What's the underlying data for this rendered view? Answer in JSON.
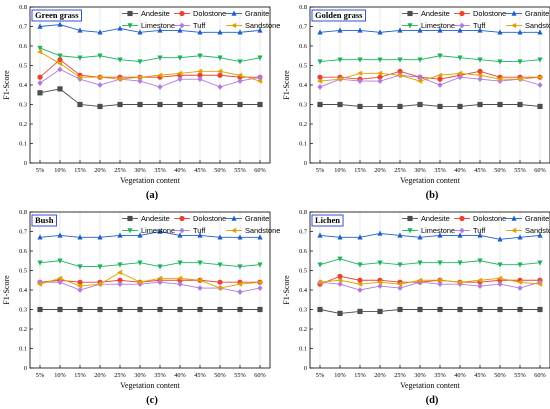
{
  "figure": {
    "series_styles": [
      {
        "name": "Andesite",
        "color": "#4d4d4d",
        "marker": "square"
      },
      {
        "name": "Dolostone",
        "color": "#e8432e",
        "marker": "circle"
      },
      {
        "name": "Granite",
        "color": "#1f5fcc",
        "marker": "triangle-up"
      },
      {
        "name": "Limestone",
        "color": "#22b25a",
        "marker": "triangle-down"
      },
      {
        "name": "Tuff",
        "color": "#b27ae0",
        "marker": "diamond"
      },
      {
        "name": "Sandstone",
        "color": "#e0a000",
        "marker": "triangle-left"
      }
    ]
  },
  "chart_data": [
    {
      "type": "line",
      "panel_title": "Green grass",
      "caption": "(a)",
      "xlabel": "Vegetation content",
      "ylabel": "F1-Score",
      "ylim": [
        0,
        0.8
      ],
      "yticks": [
        "0",
        "0.1",
        "0.2",
        "0.3",
        "0.4",
        "0.5",
        "0.6",
        "0.7",
        "0.8"
      ],
      "categories": [
        "5%",
        "10%",
        "15%",
        "20%",
        "25%",
        "30%",
        "35%",
        "40%",
        "45%",
        "50%",
        "55%",
        "60%"
      ],
      "grid": "vertical",
      "legend_position": "top-right",
      "series": [
        {
          "name": "Andesite",
          "values": [
            0.36,
            0.38,
            0.3,
            0.29,
            0.3,
            0.3,
            0.3,
            0.3,
            0.3,
            0.3,
            0.3,
            0.3
          ]
        },
        {
          "name": "Dolostone",
          "values": [
            0.44,
            0.53,
            0.45,
            0.44,
            0.44,
            0.44,
            0.44,
            0.45,
            0.45,
            0.45,
            0.44,
            0.44
          ]
        },
        {
          "name": "Granite",
          "values": [
            0.7,
            0.71,
            0.68,
            0.67,
            0.69,
            0.67,
            0.68,
            0.68,
            0.67,
            0.67,
            0.67,
            0.68
          ]
        },
        {
          "name": "Limestone",
          "values": [
            0.59,
            0.55,
            0.54,
            0.55,
            0.53,
            0.52,
            0.54,
            0.54,
            0.55,
            0.54,
            0.52,
            0.54
          ]
        },
        {
          "name": "Tuff",
          "values": [
            0.41,
            0.48,
            0.43,
            0.4,
            0.43,
            0.42,
            0.39,
            0.43,
            0.43,
            0.39,
            0.42,
            0.44
          ]
        },
        {
          "name": "Sandstone",
          "values": [
            0.57,
            0.51,
            0.44,
            0.44,
            0.43,
            0.44,
            0.45,
            0.46,
            0.47,
            0.47,
            0.45,
            0.42
          ]
        }
      ]
    },
    {
      "type": "line",
      "panel_title": "Golden grass",
      "caption": "(b)",
      "xlabel": "Vegetation content",
      "ylabel": "F1-Score",
      "ylim": [
        0,
        0.8
      ],
      "yticks": [
        "0",
        "0.1",
        "0.2",
        "0.3",
        "0.4",
        "0.5",
        "0.6",
        "0.7",
        "0.8"
      ],
      "categories": [
        "5%",
        "10%",
        "15%",
        "20%",
        "25%",
        "30%",
        "35%",
        "40%",
        "45%",
        "50%",
        "55%",
        "60%"
      ],
      "grid": "vertical",
      "legend_position": "top-right",
      "series": [
        {
          "name": "Andesite",
          "values": [
            0.3,
            0.3,
            0.29,
            0.29,
            0.29,
            0.3,
            0.29,
            0.29,
            0.3,
            0.3,
            0.3,
            0.29
          ]
        },
        {
          "name": "Dolostone",
          "values": [
            0.44,
            0.44,
            0.43,
            0.44,
            0.47,
            0.44,
            0.43,
            0.45,
            0.47,
            0.44,
            0.44,
            0.44
          ]
        },
        {
          "name": "Granite",
          "values": [
            0.67,
            0.68,
            0.68,
            0.67,
            0.68,
            0.68,
            0.68,
            0.68,
            0.68,
            0.67,
            0.67,
            0.67
          ]
        },
        {
          "name": "Limestone",
          "values": [
            0.52,
            0.53,
            0.53,
            0.53,
            0.53,
            0.53,
            0.55,
            0.54,
            0.53,
            0.52,
            0.52,
            0.53
          ]
        },
        {
          "name": "Tuff",
          "values": [
            0.39,
            0.43,
            0.42,
            0.42,
            0.45,
            0.44,
            0.4,
            0.44,
            0.43,
            0.42,
            0.43,
            0.4
          ]
        },
        {
          "name": "Sandstone",
          "values": [
            0.42,
            0.43,
            0.46,
            0.46,
            0.45,
            0.42,
            0.45,
            0.46,
            0.45,
            0.43,
            0.43,
            0.44
          ]
        }
      ]
    },
    {
      "type": "line",
      "panel_title": "Bush",
      "caption": "(c)",
      "xlabel": "Vegetation content",
      "ylabel": "F1-Score",
      "ylim": [
        0,
        0.8
      ],
      "yticks": [
        "0",
        "0.1",
        "0.2",
        "0.3",
        "0.4",
        "0.5",
        "0.6",
        "0.7",
        "0.8"
      ],
      "categories": [
        "5%",
        "10%",
        "15%",
        "20%",
        "25%",
        "30%",
        "35%",
        "40%",
        "45%",
        "50%",
        "55%",
        "60%"
      ],
      "grid": "vertical",
      "legend_position": "top-right",
      "series": [
        {
          "name": "Andesite",
          "values": [
            0.3,
            0.3,
            0.3,
            0.3,
            0.3,
            0.3,
            0.3,
            0.3,
            0.3,
            0.3,
            0.3,
            0.3
          ]
        },
        {
          "name": "Dolostone",
          "values": [
            0.44,
            0.45,
            0.44,
            0.44,
            0.45,
            0.44,
            0.45,
            0.45,
            0.45,
            0.44,
            0.44,
            0.44
          ]
        },
        {
          "name": "Granite",
          "values": [
            0.67,
            0.68,
            0.67,
            0.67,
            0.68,
            0.68,
            0.7,
            0.68,
            0.68,
            0.67,
            0.67,
            0.67
          ]
        },
        {
          "name": "Limestone",
          "values": [
            0.54,
            0.55,
            0.52,
            0.52,
            0.53,
            0.54,
            0.52,
            0.54,
            0.54,
            0.53,
            0.52,
            0.53
          ]
        },
        {
          "name": "Tuff",
          "values": [
            0.44,
            0.44,
            0.4,
            0.43,
            0.43,
            0.43,
            0.44,
            0.43,
            0.41,
            0.41,
            0.39,
            0.41
          ]
        },
        {
          "name": "Sandstone",
          "values": [
            0.43,
            0.46,
            0.42,
            0.43,
            0.49,
            0.44,
            0.46,
            0.46,
            0.45,
            0.41,
            0.43,
            0.44
          ]
        }
      ]
    },
    {
      "type": "line",
      "panel_title": "Lichen",
      "caption": "(d)",
      "xlabel": "Vegetation content",
      "ylabel": "F1-Score",
      "ylim": [
        0,
        0.8
      ],
      "yticks": [
        "0",
        "0.1",
        "0.2",
        "0.3",
        "0.4",
        "0.5",
        "0.6",
        "0.7",
        "0.8"
      ],
      "categories": [
        "5%",
        "10%",
        "15%",
        "20%",
        "25%",
        "30%",
        "35%",
        "40%",
        "45%",
        "50%",
        "55%",
        "60%"
      ],
      "grid": "vertical",
      "legend_position": "top-right",
      "series": [
        {
          "name": "Andesite",
          "values": [
            0.3,
            0.28,
            0.29,
            0.29,
            0.3,
            0.3,
            0.3,
            0.3,
            0.3,
            0.3,
            0.3,
            0.3
          ]
        },
        {
          "name": "Dolostone",
          "values": [
            0.43,
            0.47,
            0.45,
            0.45,
            0.44,
            0.44,
            0.45,
            0.44,
            0.44,
            0.45,
            0.45,
            0.45
          ]
        },
        {
          "name": "Granite",
          "values": [
            0.68,
            0.67,
            0.67,
            0.69,
            0.68,
            0.67,
            0.68,
            0.68,
            0.68,
            0.66,
            0.67,
            0.68
          ]
        },
        {
          "name": "Limestone",
          "values": [
            0.53,
            0.56,
            0.53,
            0.54,
            0.53,
            0.54,
            0.54,
            0.54,
            0.55,
            0.53,
            0.53,
            0.54
          ]
        },
        {
          "name": "Tuff",
          "values": [
            0.44,
            0.43,
            0.4,
            0.42,
            0.41,
            0.44,
            0.43,
            0.43,
            0.42,
            0.43,
            0.41,
            0.44
          ]
        },
        {
          "name": "Sandstone",
          "values": [
            0.44,
            0.45,
            0.43,
            0.44,
            0.43,
            0.45,
            0.45,
            0.44,
            0.45,
            0.46,
            0.44,
            0.43
          ]
        }
      ]
    }
  ]
}
